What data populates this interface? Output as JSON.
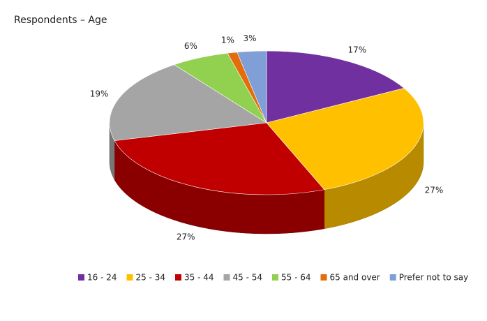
{
  "chart_data": {
    "type": "pie",
    "title": "Respondents – Age",
    "categories": [
      "16 - 24",
      "25 - 34",
      "35 - 44",
      "45 - 54",
      "55 - 64",
      "65 and over",
      "Prefer not to say"
    ],
    "values": [
      17,
      27,
      27,
      19,
      6,
      1,
      3
    ],
    "value_labels": [
      "17%",
      "27%",
      "27%",
      "19%",
      "6%",
      "1%",
      "3%"
    ],
    "colors": [
      "#7030a0",
      "#ffc000",
      "#c00000",
      "#a5a5a5",
      "#92d050",
      "#e46c0a",
      "#7f9fd6"
    ],
    "legend": "bottom"
  }
}
